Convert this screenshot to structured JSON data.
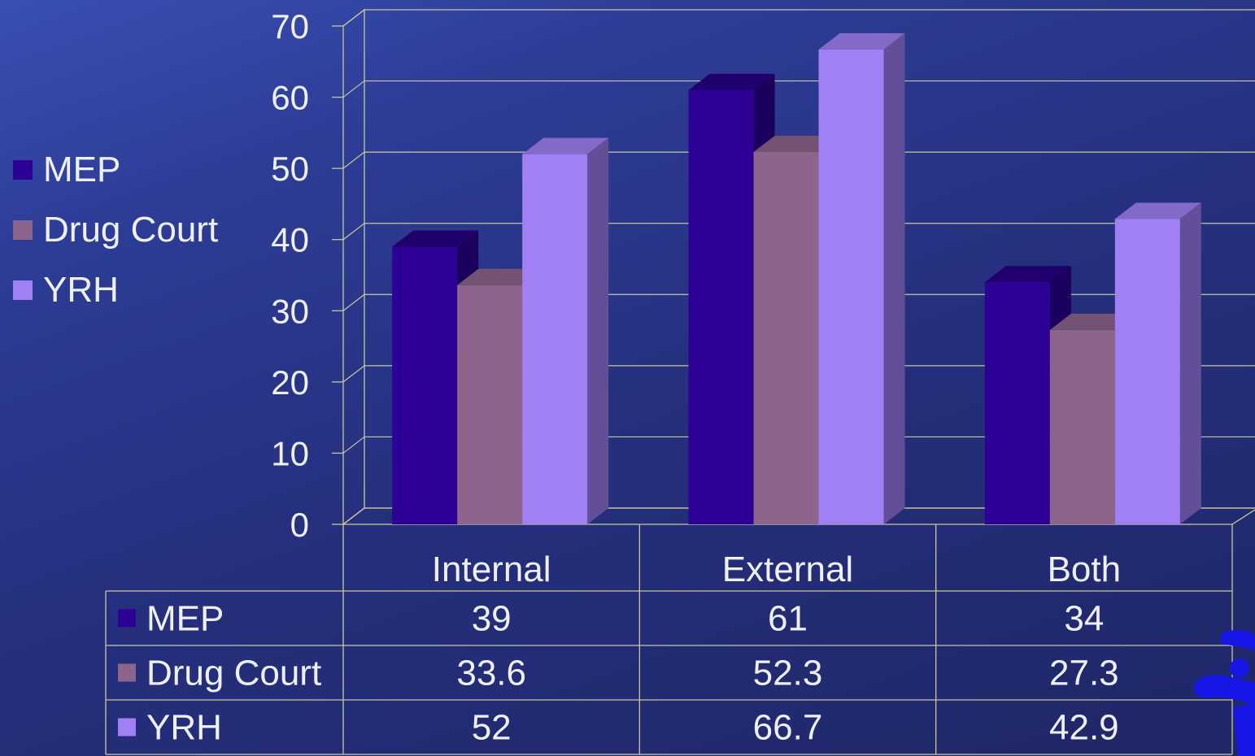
{
  "chart_data": {
    "type": "bar",
    "categories": [
      "Internal",
      "External",
      "Both"
    ],
    "series": [
      {
        "name": "MEP",
        "values": [
          39,
          61,
          34
        ],
        "labels": [
          "39",
          "61",
          "34"
        ],
        "color": "#2d0096"
      },
      {
        "name": "Drug Court",
        "values": [
          33.6,
          52.3,
          27.3
        ],
        "labels": [
          "33.6",
          "52.3",
          "27.3"
        ],
        "color": "#8c648c"
      },
      {
        "name": "YRH",
        "values": [
          52,
          66.7,
          42.9
        ],
        "labels": [
          "52",
          "66.7",
          "42.9"
        ],
        "color": "#a080f4"
      }
    ],
    "ylim": [
      0,
      70
    ],
    "yticks": [
      "0",
      "10",
      "20",
      "30",
      "40",
      "50",
      "60",
      "70"
    ],
    "grid": true,
    "legend": "left",
    "data_table": true,
    "style": "3d-clustered-column"
  },
  "colors": {
    "background": "#2a3585",
    "grid": "#c9c7a0",
    "text": "#eef0fb"
  },
  "logo_icon": "blue-figure-logo-icon"
}
